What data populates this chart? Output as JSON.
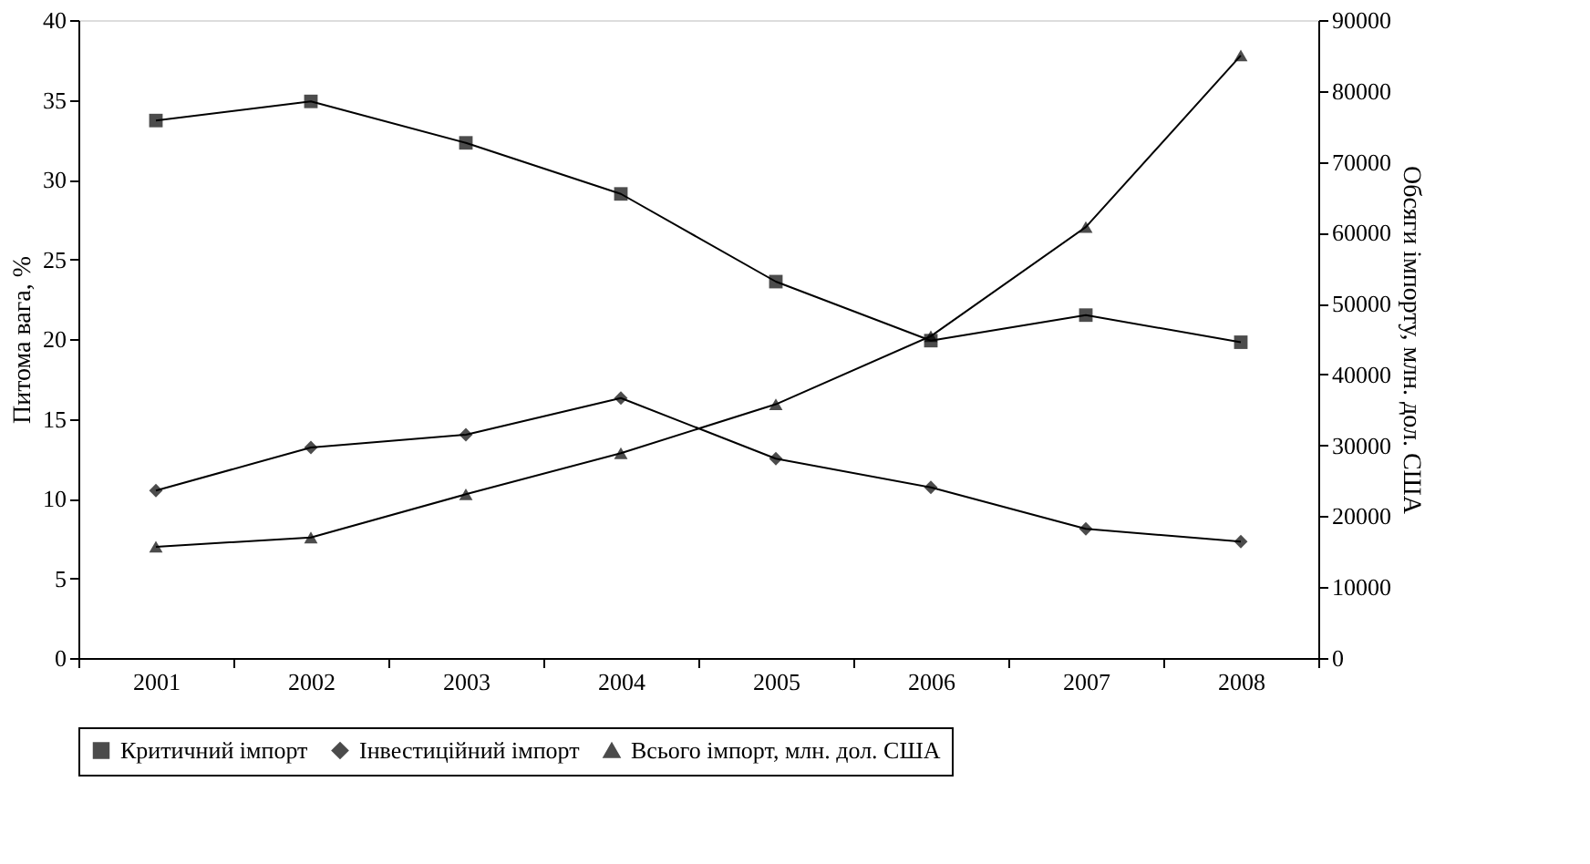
{
  "chart_data": {
    "type": "line",
    "categories": [
      "2001",
      "2002",
      "2003",
      "2004",
      "2005",
      "2006",
      "2007",
      "2008"
    ],
    "ylabel": "Питома вага, %",
    "y2label": "Обсяги імпорту, млн. дол. США",
    "ylim": [
      0,
      40
    ],
    "yticks": [
      0,
      5,
      10,
      15,
      20,
      25,
      30,
      35,
      40
    ],
    "y2lim": [
      0,
      90000
    ],
    "y2ticks": [
      0,
      10000,
      20000,
      30000,
      40000,
      50000,
      60000,
      70000,
      80000,
      90000
    ],
    "grid": false,
    "legend": "bottom",
    "line_style": "solid",
    "series": [
      {
        "name": "Критичний імпорт",
        "color": "#000000",
        "marker": "square",
        "values": [
          33.7,
          34.9,
          32.3,
          29.1,
          23.6,
          19.9,
          21.5,
          19.8
        ]
      },
      {
        "name": "Інвестиційний імпорт",
        "color": "#000000",
        "marker": "diamond",
        "values": [
          10.5,
          13.2,
          14.0,
          16.3,
          12.5,
          10.7,
          8.1,
          7.3
        ]
      },
      {
        "name": "Всього імпорт, млн. дол. США",
        "color": "#000000",
        "marker": "triangle",
        "axis": "y2",
        "values": [
          15700,
          17000,
          23100,
          28900,
          35800,
          45400,
          60800,
          85000
        ]
      }
    ]
  }
}
